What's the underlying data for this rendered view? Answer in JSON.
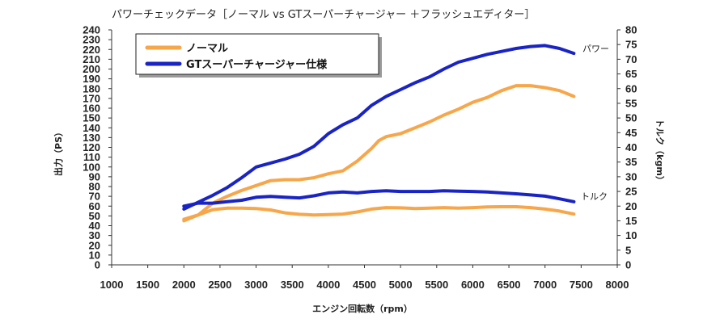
{
  "chart_data": {
    "type": "line",
    "title": "パワーチェックデータ［ノーマル vs GTスーパーチャージャー ＋フラッシュエディター］",
    "xlabel": "エンジン回転数（rpm）",
    "ylabel_left": "出力（PS）",
    "ylabel_right": "トルク（kgm）",
    "xlim": [
      1000,
      8000
    ],
    "x_ticks": [
      1000,
      1500,
      2000,
      2500,
      3000,
      3500,
      4000,
      4500,
      5000,
      5500,
      6000,
      6500,
      7000,
      7500,
      8000
    ],
    "ylim_left": [
      0,
      240
    ],
    "y_ticks_left": [
      0,
      10,
      20,
      30,
      40,
      50,
      60,
      70,
      80,
      90,
      100,
      110,
      120,
      130,
      140,
      150,
      160,
      170,
      180,
      190,
      200,
      210,
      220,
      230,
      240
    ],
    "ylim_right": [
      0,
      80
    ],
    "y_ticks_right": [
      0,
      5,
      10,
      15,
      20,
      25,
      30,
      35,
      40,
      45,
      50,
      55,
      60,
      65,
      70,
      75,
      80
    ],
    "grid": false,
    "legend": {
      "placement": "top-left",
      "entries": [
        "ノーマル",
        "GTスーパーチャージャー仕様"
      ]
    },
    "annotations": {
      "power": "パワー",
      "torque": "トルク"
    },
    "colors": {
      "normal": "#f7a64a",
      "gt": "#1a24c4"
    },
    "series": [
      {
        "name": "ノーマル",
        "metric": "power",
        "axis": "left",
        "color": "#f7a64a",
        "x": [
          2000,
          2200,
          2400,
          2600,
          2800,
          3000,
          3200,
          3400,
          3600,
          3800,
          4000,
          4200,
          4400,
          4600,
          4700,
          4800,
          5000,
          5200,
          5400,
          5600,
          5800,
          6000,
          6200,
          6400,
          6600,
          6800,
          7000,
          7200,
          7400
        ],
        "y": [
          45,
          51,
          63,
          70,
          76,
          81,
          86,
          87,
          87,
          89,
          93,
          96,
          106,
          119,
          127,
          131,
          134,
          140,
          146,
          153,
          159,
          166,
          171,
          178,
          183,
          183,
          181,
          178,
          172
        ]
      },
      {
        "name": "GTスーパーチャージャー仕様",
        "metric": "power",
        "axis": "left",
        "color": "#1a24c4",
        "x": [
          2000,
          2200,
          2400,
          2600,
          2800,
          3000,
          3200,
          3400,
          3600,
          3800,
          4000,
          4200,
          4400,
          4600,
          4800,
          5000,
          5200,
          5400,
          5600,
          5800,
          6000,
          6200,
          6400,
          6600,
          6800,
          7000,
          7200,
          7400
        ],
        "y": [
          57,
          64,
          71,
          79,
          89,
          100,
          104,
          108,
          113,
          121,
          134,
          143,
          150,
          163,
          172,
          179,
          186,
          192,
          200,
          207,
          211,
          215,
          218,
          221,
          223,
          224,
          221,
          216
        ]
      },
      {
        "name": "ノーマル",
        "metric": "torque",
        "axis": "right",
        "color": "#f7a64a",
        "x": [
          2000,
          2200,
          2400,
          2600,
          2800,
          3000,
          3200,
          3400,
          3600,
          3800,
          4000,
          4200,
          4400,
          4600,
          4800,
          5000,
          5200,
          5400,
          5600,
          5800,
          6000,
          6200,
          6400,
          6600,
          6800,
          7000,
          7200,
          7400
        ],
        "y": [
          15.5,
          17,
          18.8,
          19.3,
          19.3,
          19.2,
          18.7,
          17.7,
          17.2,
          17.0,
          17.1,
          17.3,
          18.0,
          19.0,
          19.5,
          19.4,
          19.2,
          19.3,
          19.5,
          19.3,
          19.5,
          19.7,
          19.8,
          19.8,
          19.5,
          19.0,
          18.3,
          17.3
        ]
      },
      {
        "name": "GTスーパーチャージャー仕様",
        "metric": "torque",
        "axis": "right",
        "color": "#1a24c4",
        "x": [
          2000,
          2200,
          2400,
          2600,
          2800,
          3000,
          3200,
          3400,
          3600,
          3800,
          4000,
          4200,
          4400,
          4600,
          4800,
          5000,
          5200,
          5400,
          5600,
          5800,
          6000,
          6200,
          6400,
          6600,
          6800,
          7000,
          7200,
          7400
        ],
        "y": [
          20.0,
          21.0,
          21.0,
          21.5,
          22.0,
          23.0,
          23.3,
          23.0,
          22.8,
          23.5,
          24.5,
          24.8,
          24.5,
          25.0,
          25.2,
          25.0,
          25.0,
          25.0,
          25.2,
          25.1,
          25.0,
          24.8,
          24.5,
          24.2,
          23.8,
          23.4,
          22.5,
          21.5
        ]
      }
    ]
  }
}
